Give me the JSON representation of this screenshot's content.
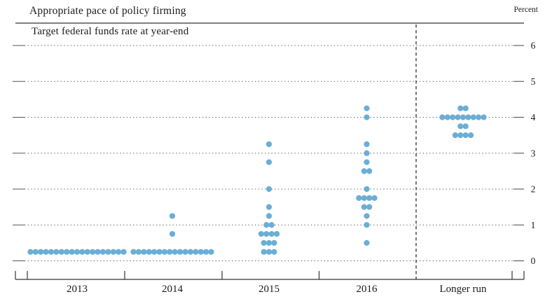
{
  "header": {
    "title": "Appropriate pace of policy firming",
    "subtitle": "Target federal funds rate at year-end",
    "unit_label": "Percent"
  },
  "chart_data": {
    "type": "scatter",
    "title": "Appropriate pace of policy firming",
    "subtitle": "Target federal funds rate at year-end",
    "ylabel": "Percent",
    "ylim": [
      0,
      6
    ],
    "yticks": [
      0,
      1,
      2,
      3,
      4,
      5,
      6
    ],
    "grid": "dotted horizontal lines at each integer percent",
    "categories": [
      "2013",
      "2014",
      "2015",
      "2016",
      "Longer run"
    ],
    "separator_before_category": "Longer run",
    "dot_color": "#6aaed6",
    "axis_color": "#333333",
    "grid_color": "#555555",
    "series": [
      {
        "category": "2013",
        "dots": [
          {
            "rate": 0.25,
            "count": 19
          }
        ]
      },
      {
        "category": "2014",
        "dots": [
          {
            "rate": 0.25,
            "count": 16
          },
          {
            "rate": 0.75,
            "count": 1
          },
          {
            "rate": 1.25,
            "count": 1
          }
        ]
      },
      {
        "category": "2015",
        "dots": [
          {
            "rate": 0.25,
            "count": 3
          },
          {
            "rate": 0.5,
            "count": 3
          },
          {
            "rate": 0.75,
            "count": 4
          },
          {
            "rate": 1.0,
            "count": 2
          },
          {
            "rate": 1.25,
            "count": 1
          },
          {
            "rate": 1.5,
            "count": 1
          },
          {
            "rate": 2.0,
            "count": 1
          },
          {
            "rate": 2.75,
            "count": 1
          },
          {
            "rate": 3.25,
            "count": 1
          }
        ]
      },
      {
        "category": "2016",
        "dots": [
          {
            "rate": 0.5,
            "count": 1
          },
          {
            "rate": 1.0,
            "count": 1
          },
          {
            "rate": 1.25,
            "count": 1
          },
          {
            "rate": 1.5,
            "count": 2
          },
          {
            "rate": 1.75,
            "count": 4
          },
          {
            "rate": 2.0,
            "count": 1
          },
          {
            "rate": 2.5,
            "count": 2
          },
          {
            "rate": 2.75,
            "count": 1
          },
          {
            "rate": 3.0,
            "count": 1
          },
          {
            "rate": 3.25,
            "count": 1
          },
          {
            "rate": 4.0,
            "count": 1
          },
          {
            "rate": 4.25,
            "count": 1
          }
        ]
      },
      {
        "category": "Longer run",
        "dots": [
          {
            "rate": 3.5,
            "count": 4
          },
          {
            "rate": 3.75,
            "count": 2
          },
          {
            "rate": 4.0,
            "count": 9
          },
          {
            "rate": 4.25,
            "count": 2
          }
        ]
      }
    ]
  }
}
